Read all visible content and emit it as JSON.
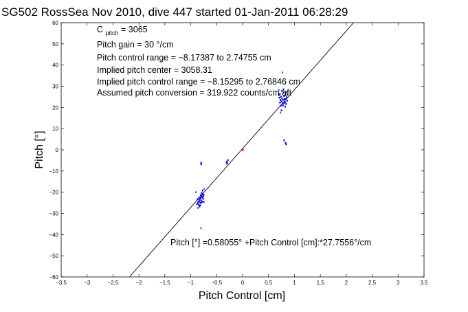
{
  "chart_data": {
    "type": "scatter",
    "title": "SG502 RossSea Nov 2010, dive 447 started 01-Jan-2011 06:28:29",
    "xlabel": "Pitch Control [cm]",
    "ylabel": "Pitch [°]",
    "xlim": [
      -3.5,
      3.5
    ],
    "ylim": [
      -60,
      60
    ],
    "xticks": [
      -3.5,
      -3,
      -2.5,
      -2,
      -1.5,
      -1,
      -0.5,
      0,
      0.5,
      1,
      1.5,
      2,
      2.5,
      3,
      3.5
    ],
    "xtick_labels": [
      "−3.5",
      "−3",
      "−2.5",
      "−2",
      "−1.5",
      "−1",
      "−0.5",
      "0",
      "0.5",
      "1",
      "1.5",
      "2",
      "2.5",
      "3",
      "3.5"
    ],
    "yticks": [
      -60,
      -50,
      -40,
      -30,
      -20,
      -10,
      0,
      10,
      20,
      30,
      40,
      50,
      60
    ],
    "ytick_labels": [
      "−60",
      "−50",
      "−40",
      "−30",
      "−20",
      "−10",
      "0",
      "10",
      "20",
      "30",
      "40",
      "50",
      "60"
    ],
    "grid": false,
    "legend": "none",
    "annotations": {
      "c_pitch_main": "C",
      "c_pitch_sub": "pitch",
      "c_pitch_value": " = 3065",
      "pitch_gain": "Pitch gain = 30 °/cm",
      "pitch_control_range": "Pitch control range = −8.17387 to 2.74755 cm",
      "implied_pitch_center": "Implied pitch center = 3058.31",
      "implied_pitch_control_range": "Implied pitch control range = −8.15295 to 2.76846 cm",
      "assumed_pitch_conversion": "Assumed pitch conversion = 319.922 counts/cm aft",
      "fit_equation": "Pitch [°] =0.58055° +Pitch Control [cm]:*27.7556°/cm"
    },
    "fit_line": {
      "intercept": 0.58055,
      "slope": 27.7556,
      "color": "#000000"
    },
    "reference_point": {
      "x": 0,
      "y": 0,
      "color": "#ff0000"
    },
    "series": [
      {
        "color": "#0000cc",
        "points": [
          [
            -0.88,
            -25.5
          ],
          [
            -0.86,
            -24.8
          ],
          [
            -0.85,
            -25.9
          ],
          [
            -0.84,
            -24.2
          ],
          [
            -0.83,
            -23.5
          ],
          [
            -0.82,
            -24.9
          ],
          [
            -0.81,
            -22.8
          ],
          [
            -0.8,
            -23.9
          ],
          [
            -0.79,
            -21.7
          ],
          [
            -0.78,
            -22.4
          ],
          [
            -0.77,
            -20.9
          ],
          [
            -0.76,
            -23.1
          ],
          [
            -0.75,
            -21.2
          ],
          [
            -0.82,
            -26.2
          ],
          [
            -0.8,
            -25.1
          ],
          [
            -0.78,
            -24.4
          ],
          [
            -0.76,
            -22.0
          ],
          [
            -0.84,
            -22.6
          ],
          [
            -0.79,
            -20.3
          ],
          [
            -0.77,
            -19.2
          ],
          [
            -0.81,
            -21.4
          ],
          [
            -0.83,
            -26.7
          ],
          [
            -0.75,
            -24.6
          ],
          [
            -0.87,
            -23.3
          ],
          [
            -0.8,
            -6.2
          ],
          [
            -0.8,
            -6.8
          ],
          [
            -0.3,
            -5.5
          ],
          [
            -0.3,
            -6.5
          ],
          [
            -0.31,
            -6.0
          ],
          [
            0.7,
            25.8
          ],
          [
            0.71,
            24.6
          ],
          [
            0.72,
            26.4
          ],
          [
            0.73,
            23.5
          ],
          [
            0.74,
            25.1
          ],
          [
            0.75,
            22.8
          ],
          [
            0.76,
            24.2
          ],
          [
            0.77,
            21.9
          ],
          [
            0.78,
            23.6
          ],
          [
            0.79,
            26.9
          ],
          [
            0.8,
            25.4
          ],
          [
            0.81,
            24.0
          ],
          [
            0.82,
            22.5
          ],
          [
            0.83,
            25.9
          ],
          [
            0.84,
            27.2
          ],
          [
            0.85,
            24.8
          ],
          [
            0.86,
            23.2
          ],
          [
            0.78,
            21.0
          ],
          [
            0.8,
            22.1
          ],
          [
            0.82,
            20.4
          ],
          [
            0.74,
            20.8
          ],
          [
            0.76,
            27.8
          ],
          [
            0.72,
            22.3
          ],
          [
            0.84,
            21.6
          ],
          [
            0.79,
            28.5
          ],
          [
            0.83,
            23.9
          ],
          [
            0.75,
            18.6
          ],
          [
            0.8,
            4.5
          ],
          [
            0.83,
            3.2
          ],
          [
            0.84,
            2.6
          ]
        ]
      },
      {
        "color": "#3355ff",
        "points": [
          [
            -0.9,
            -20.0
          ],
          [
            -0.74,
            -18.5
          ],
          [
            -0.86,
            -27.4
          ],
          [
            0.7,
            28.2
          ],
          [
            0.87,
            26.1
          ],
          [
            0.73,
            17.5
          ],
          [
            -0.8,
            -37.0
          ],
          [
            -0.28,
            -4.8
          ],
          [
            0.77,
            36.5
          ]
        ]
      }
    ]
  }
}
